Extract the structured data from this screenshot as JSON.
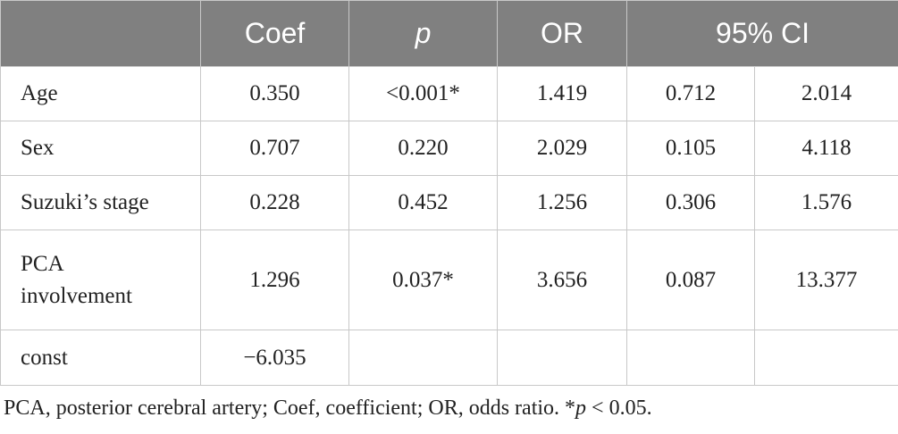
{
  "table": {
    "headers": {
      "label": "",
      "coef": "Coef",
      "p": "p",
      "or": "OR",
      "ci": "95% CI"
    },
    "rows": [
      {
        "label": "Age",
        "coef": "0.350",
        "p": "<0.001*",
        "or": "1.419",
        "ci_low": "0.712",
        "ci_high": "2.014"
      },
      {
        "label": "Sex",
        "coef": "0.707",
        "p": "0.220",
        "or": "2.029",
        "ci_low": "0.105",
        "ci_high": "4.118"
      },
      {
        "label": "Suzuki’s stage",
        "coef": "0.228",
        "p": "0.452",
        "or": "1.256",
        "ci_low": "0.306",
        "ci_high": "1.576"
      },
      {
        "label_line1": "PCA",
        "label_line2": "involvement",
        "coef": "1.296",
        "p": "0.037*",
        "or": "3.656",
        "ci_low": "0.087",
        "ci_high": "13.377"
      },
      {
        "label": "const",
        "coef": "−6.035",
        "p": "",
        "or": "",
        "ci_low": "",
        "ci_high": ""
      }
    ]
  },
  "footnote": {
    "text": "PCA, posterior cerebral artery; Coef, coefficient; OR, odds ratio. *",
    "p_symbol": "p",
    "threshold": " < 0.05."
  },
  "colors": {
    "header_bg": "#808080",
    "header_text": "#ffffff",
    "grid": "#c8c8c8",
    "body_text": "#222222"
  }
}
